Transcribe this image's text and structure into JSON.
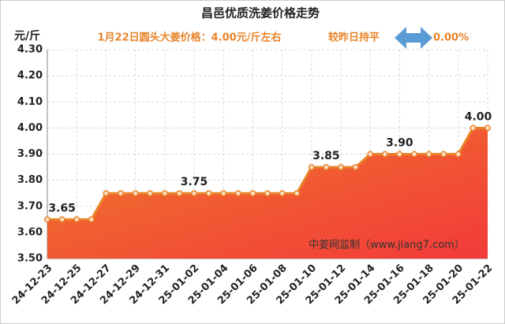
{
  "chart_data": {
    "type": "area-line",
    "title": "昌邑优质洗姜价格走势",
    "subtitle": "1月22日圆头大姜价格：4.00元/斤左右",
    "change_text": "较昨日持平",
    "change_value": "0.00%",
    "y_label": "元/斤",
    "watermark": "中姜网监制（www.jiang7.com）",
    "categories": [
      "24-12-23",
      null,
      "24-12-25",
      null,
      "24-12-27",
      null,
      "24-12-29",
      null,
      "24-12-31",
      null,
      "25-01-02",
      null,
      "25-01-04",
      null,
      "25-01-06",
      null,
      "25-01-08",
      null,
      "25-01-10",
      null,
      "25-01-12",
      null,
      "25-01-14",
      null,
      "25-01-16",
      null,
      "25-01-18",
      null,
      "25-01-20",
      null,
      "25-01-22"
    ],
    "values": [
      3.65,
      3.65,
      3.65,
      3.65,
      3.75,
      3.75,
      3.75,
      3.75,
      3.75,
      3.75,
      3.75,
      3.75,
      3.75,
      3.75,
      3.75,
      3.75,
      3.75,
      3.75,
      3.85,
      3.85,
      3.85,
      3.85,
      3.9,
      3.9,
      3.9,
      3.9,
      3.9,
      3.9,
      3.9,
      4.0,
      4.0
    ],
    "value_labels": [
      null,
      "3.65",
      null,
      null,
      null,
      null,
      null,
      null,
      null,
      null,
      "3.75",
      null,
      null,
      null,
      null,
      null,
      null,
      null,
      null,
      "3.85",
      null,
      null,
      null,
      null,
      "3.90",
      null,
      null,
      null,
      null,
      null,
      "4.00"
    ],
    "color": "#e8842a",
    "ylim": [
      3.5,
      4.3
    ],
    "yticks": [
      {
        "value": 3.5,
        "label": "3.50"
      },
      {
        "value": 3.6,
        "label": "3.60"
      },
      {
        "value": 3.7,
        "label": "3.70"
      },
      {
        "value": 3.8,
        "label": "3.80"
      },
      {
        "value": 3.9,
        "label": "3.90"
      },
      {
        "value": 4.0,
        "label": "4.00"
      },
      {
        "value": 4.1,
        "label": "4.10"
      },
      {
        "value": 4.2,
        "label": "4.20"
      },
      {
        "value": 4.3,
        "label": "4.30"
      }
    ],
    "grid": true
  }
}
